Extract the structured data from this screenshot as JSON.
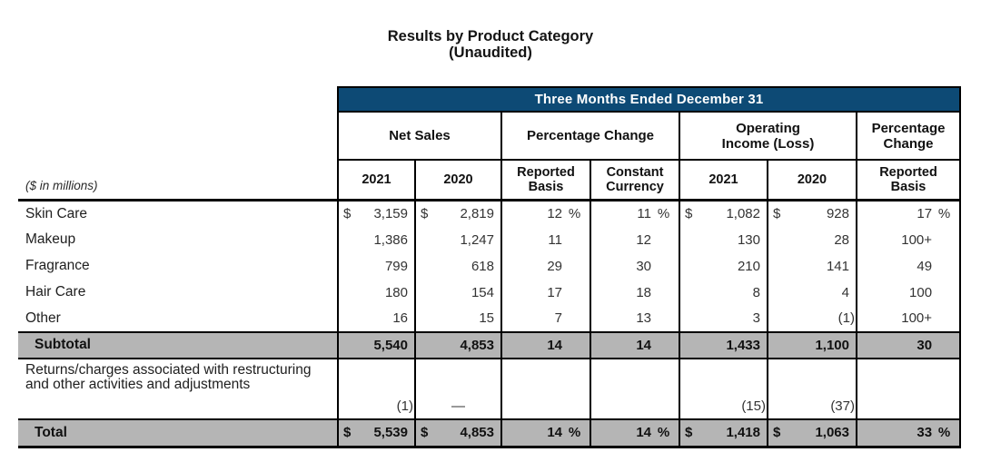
{
  "page": {
    "title_line1": "Results by Product Category",
    "title_line2": "(Unaudited)"
  },
  "colors": {
    "banner_bg": "#0d4a75",
    "band_gray": "#b5b5b5",
    "border": "#000000"
  },
  "table": {
    "banner": "Three Months Ended December 31",
    "left_note": "($ in millions)",
    "column_types": [
      "money",
      "money",
      "pct",
      "pct",
      "money",
      "money",
      "pct"
    ],
    "column_groups": [
      {
        "id": "net-sales",
        "span": 2,
        "lines": [
          "Net Sales"
        ]
      },
      {
        "id": "percentage-change",
        "span": 2,
        "lines": [
          "Percentage Change"
        ]
      },
      {
        "id": "operating-income-loss",
        "span": 2,
        "lines": [
          "Operating",
          "Income (Loss)"
        ]
      },
      {
        "id": "percentage-change-reported",
        "span": 1,
        "lines": [
          "Percentage",
          "Change"
        ]
      }
    ],
    "subheaders": [
      {
        "lines": [
          "2021"
        ]
      },
      {
        "lines": [
          "2020"
        ]
      },
      {
        "lines": [
          "Reported",
          "Basis"
        ]
      },
      {
        "lines": [
          "Constant",
          "Currency"
        ]
      },
      {
        "lines": [
          "2021"
        ]
      },
      {
        "lines": [
          "2020"
        ]
      },
      {
        "lines": [
          "Reported",
          "Basis"
        ]
      }
    ],
    "rows": [
      {
        "label": "Skin Care",
        "style": "data",
        "cells": [
          {
            "cur": "$",
            "val": "3,159"
          },
          {
            "cur": "$",
            "val": "2,819"
          },
          {
            "val": "12",
            "suffix": "%"
          },
          {
            "val": "11",
            "suffix": "%"
          },
          {
            "cur": "$",
            "val": "1,082"
          },
          {
            "cur": "$",
            "val": "928"
          },
          {
            "val": "17",
            "suffix": "%"
          }
        ]
      },
      {
        "label": "Makeup",
        "style": "data",
        "cells": [
          {
            "val": "1,386"
          },
          {
            "val": "1,247"
          },
          {
            "val": "11"
          },
          {
            "val": "12"
          },
          {
            "val": "130"
          },
          {
            "val": "28"
          },
          {
            "val": "100+"
          }
        ]
      },
      {
        "label": "Fragrance",
        "style": "data",
        "cells": [
          {
            "val": "799"
          },
          {
            "val": "618"
          },
          {
            "val": "29"
          },
          {
            "val": "30"
          },
          {
            "val": "210"
          },
          {
            "val": "141"
          },
          {
            "val": "49"
          }
        ]
      },
      {
        "label": "Hair Care",
        "style": "data",
        "cells": [
          {
            "val": "180"
          },
          {
            "val": "154"
          },
          {
            "val": "17"
          },
          {
            "val": "18"
          },
          {
            "val": "8"
          },
          {
            "val": "4"
          },
          {
            "val": "100"
          }
        ]
      },
      {
        "label": "Other",
        "style": "data",
        "cells": [
          {
            "val": "16"
          },
          {
            "val": "15"
          },
          {
            "val": "7"
          },
          {
            "val": "13"
          },
          {
            "val": "3"
          },
          {
            "val": "(1)"
          },
          {
            "val": "100+"
          }
        ]
      },
      {
        "label": "Subtotal",
        "style": "subtotal",
        "cells": [
          {
            "val": "5,540"
          },
          {
            "val": "4,853"
          },
          {
            "val": "14"
          },
          {
            "val": "14"
          },
          {
            "val": "1,433"
          },
          {
            "val": "1,100"
          },
          {
            "val": "30"
          }
        ]
      },
      {
        "label": "Returns/charges associated with restructuring and other activities and adjustments",
        "style": "tall",
        "cells": [
          {
            "val": "(1)"
          },
          {
            "val": "—",
            "dash": true
          },
          {
            "val": ""
          },
          {
            "val": ""
          },
          {
            "val": "(15)"
          },
          {
            "val": "(37)"
          },
          {
            "val": ""
          }
        ]
      },
      {
        "label": "Total",
        "style": "total",
        "cells": [
          {
            "cur": "$",
            "val": "5,539"
          },
          {
            "cur": "$",
            "val": "4,853"
          },
          {
            "val": "14",
            "suffix": "%"
          },
          {
            "val": "14",
            "suffix": "%"
          },
          {
            "cur": "$",
            "val": "1,418"
          },
          {
            "cur": "$",
            "val": "1,063"
          },
          {
            "val": "33",
            "suffix": "%"
          }
        ]
      }
    ]
  }
}
